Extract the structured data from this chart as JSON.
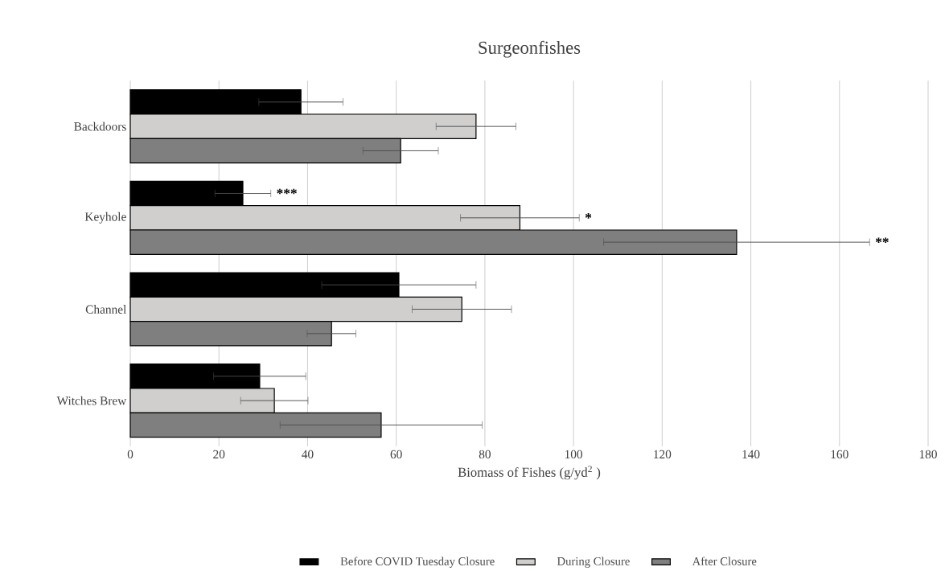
{
  "chart_data": {
    "type": "bar",
    "orientation": "horizontal",
    "title": "Surgeonfishes",
    "xlabel": "Biomass of Fishes (g/yd$^{2}$ )",
    "categories": [
      "Backdoors",
      "Keyhole",
      "Channel",
      "Witches Brew"
    ],
    "series": [
      {
        "name": "Before COVID Tuesday Closure",
        "color": "#000000",
        "values": [
          38.5,
          25.4,
          60.6,
          29.2
        ],
        "errors": [
          9.5,
          6.3,
          17.4,
          10.4
        ]
      },
      {
        "name": "During Closure",
        "color": "#d0cfcd",
        "values": [
          78,
          87.9,
          74.8,
          32.5
        ],
        "errors": [
          9,
          13.4,
          11.2,
          7.6
        ]
      },
      {
        "name": "After Closure",
        "color": "#7f7f7f",
        "values": [
          61,
          136.8,
          45.4,
          56.6
        ],
        "errors": [
          8.5,
          30,
          5.5,
          22.8
        ]
      }
    ],
    "xlim": [
      0,
      180
    ],
    "xticks": [
      0,
      20,
      40,
      60,
      80,
      100,
      120,
      140,
      160,
      180
    ],
    "grid": "x",
    "legend": "bottom",
    "annotations": [
      "***",
      "*",
      "**"
    ]
  }
}
